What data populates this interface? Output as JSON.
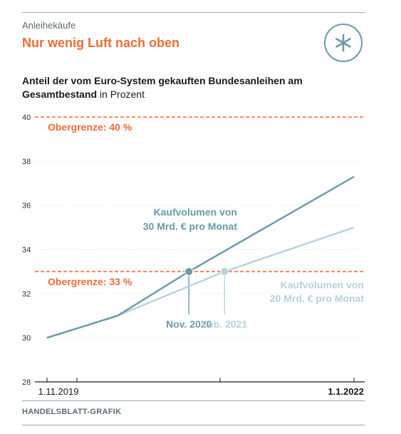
{
  "header": {
    "kicker": "Anleihekäufe",
    "headline": "Nur wenig Luft nach oben",
    "badge_icon": "asterisk-icon"
  },
  "subtitle": {
    "bold": "Anteil der vom Euro-System gekauften Bundesanleihen am Gesamtbestand",
    "normal": " in Prozent"
  },
  "footer": {
    "source": "HANDELSBLATT-GRAFIK"
  },
  "colors": {
    "accent": "#ef6b35",
    "series_dark": "#6a9aa8",
    "series_light": "#b5d2dc",
    "axis": "#1a1a1a",
    "grid": "#dddddd"
  },
  "chart_data": {
    "type": "line",
    "ylim": [
      28,
      40
    ],
    "yticks": [
      28,
      30,
      32,
      34,
      36,
      38,
      40
    ],
    "xlim": [
      "1.11.2019",
      "1.1.2022"
    ],
    "xtick_labels": [
      {
        "x": "1.11.2019",
        "label": "1.11.2019",
        "bold": false
      },
      {
        "x": "1.1.2022",
        "label": "1.1.2022",
        "bold": true
      }
    ],
    "grid": "horizontal dotted",
    "reference_lines": [
      {
        "y": 40,
        "label": "Obergrenze: 40 %"
      },
      {
        "y": 33,
        "label": "Obergrenze: 33 %"
      }
    ],
    "series": [
      {
        "label_lines": [
          "Kaufvolumen von",
          "30 Mrd. € pro Monat"
        ],
        "points": [
          [
            "1.11.2019",
            30.0
          ],
          [
            "1.5.2020",
            31.0
          ],
          [
            "1.11.2020",
            33.0
          ],
          [
            "1.1.2022",
            37.3
          ]
        ]
      },
      {
        "label_lines": [
          "Kaufvolumen von",
          "20 Mrd. € pro Monat"
        ],
        "points": [
          [
            "1.11.2019",
            30.0
          ],
          [
            "1.5.2020",
            31.0
          ],
          [
            "1.2.2021",
            33.0
          ],
          [
            "1.1.2022",
            35.0
          ]
        ]
      }
    ],
    "markers": [
      {
        "x": "1.11.2020",
        "y": 33,
        "label": "Nov. 2020",
        "series": 0
      },
      {
        "x": "1.2.2021",
        "y": 33,
        "label": "Feb. 2021",
        "series": 1
      }
    ]
  }
}
